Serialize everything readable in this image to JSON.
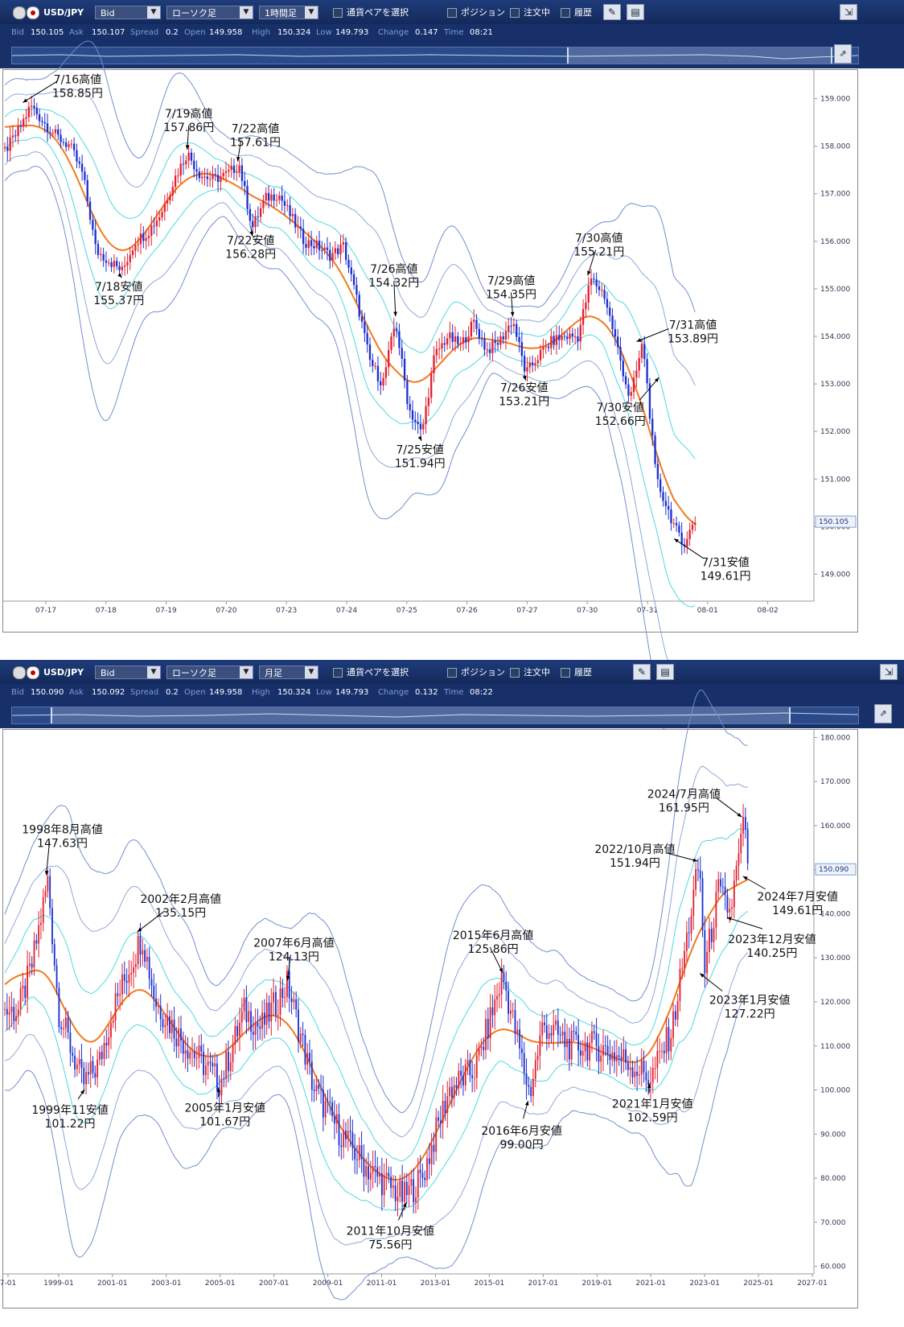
{
  "panels": [
    {
      "toolbar": {
        "pair": "USD/JPY",
        "price_type": "Bid",
        "chart_type": "ローソク足",
        "timeframe": "1時間足",
        "pair_select": "通貨ペアを選択",
        "position": "ポジション",
        "orders": "注文中",
        "history": "履歴"
      },
      "quote": {
        "bid_label": "Bid",
        "bid": "150.105",
        "ask_label": "Ask",
        "ask": "150.107",
        "spread_label": "Spread",
        "spread": "0.2",
        "open_label": "Open",
        "open": "149.958",
        "high_label": "High",
        "high": "150.324",
        "low_label": "Low",
        "low": "149.793",
        "change_label": "Change",
        "change": "0.147",
        "time_label": "Time",
        "time": "08:21"
      }
    },
    {
      "toolbar": {
        "pair": "USD/JPY",
        "price_type": "Bid",
        "chart_type": "ローソク足",
        "timeframe": "月足",
        "pair_select": "通貨ペアを選択",
        "position": "ポジション",
        "orders": "注文中",
        "history": "履歴"
      },
      "quote": {
        "bid_label": "Bid",
        "bid": "150.090",
        "ask_label": "Ask",
        "ask": "150.092",
        "spread_label": "Spread",
        "spread": "0.2",
        "open_label": "Open",
        "open": "149.958",
        "high_label": "High",
        "high": "150.324",
        "low_label": "Low",
        "low": "149.793",
        "change_label": "Change",
        "change": "0.132",
        "time_label": "Time",
        "time": "08:22"
      }
    }
  ],
  "chart_data": [
    {
      "type": "candlestick",
      "ylim": [
        148.5,
        159.5
      ],
      "y_ticks": [
        "149.000",
        "150.000",
        "151.000",
        "152.000",
        "153.000",
        "154.000",
        "155.000",
        "156.000",
        "157.000",
        "158.000",
        "159.000"
      ],
      "x_ticks": [
        "07-17",
        "07-18",
        "07-19",
        "07-20",
        "07-23",
        "07-24",
        "07-25",
        "07-26",
        "07-27",
        "07-30",
        "07-31",
        "08-01",
        "08-02"
      ],
      "current_price": "150.105",
      "price_path": [
        157.9,
        158.3,
        158.85,
        158.5,
        158.2,
        158.0,
        157.4,
        155.8,
        155.6,
        155.37,
        156.0,
        156.2,
        156.6,
        157.3,
        157.86,
        157.4,
        157.3,
        157.4,
        157.61,
        156.28,
        156.9,
        157.0,
        156.5,
        156.0,
        155.9,
        155.7,
        155.9,
        154.8,
        153.5,
        153.0,
        154.32,
        152.5,
        151.94,
        153.6,
        154.0,
        153.8,
        154.3,
        153.7,
        153.9,
        154.35,
        153.21,
        153.6,
        153.9,
        154.0,
        154.0,
        155.21,
        154.9,
        153.8,
        152.66,
        153.89,
        151.0,
        150.3,
        149.61,
        150.105
      ],
      "price_series": [
        {
          "name": "close",
          "values": [
            157.9,
            158.3,
            158.85,
            158.5,
            158.2,
            158.0,
            157.4,
            155.8,
            155.6,
            155.37,
            156.0,
            156.2,
            156.6,
            157.3,
            157.86,
            157.4,
            157.3,
            157.4,
            157.61,
            156.28,
            156.9,
            157.0,
            156.5,
            156.0,
            155.9,
            155.7,
            155.9,
            154.8,
            153.5,
            153.0,
            154.32,
            152.5,
            151.94,
            153.6,
            154.0,
            153.8,
            154.3,
            153.7,
            153.9,
            154.35,
            153.21,
            153.6,
            153.9,
            154.0,
            154.0,
            155.21,
            154.9,
            153.8,
            152.66,
            153.89,
            151.0,
            150.3,
            149.61,
            150.105
          ]
        }
      ],
      "annotations": [
        {
          "lines": [
            "7/16高値",
            "158.85円"
          ],
          "x": 2,
          "y": 158.85
        },
        {
          "lines": [
            "7/18安値",
            "155.37円"
          ],
          "x": 9,
          "y": 155.37
        },
        {
          "lines": [
            "7/19高値",
            "157.86円"
          ],
          "x": 14,
          "y": 157.86
        },
        {
          "lines": [
            "7/22高値",
            "157.61円"
          ],
          "x": 18,
          "y": 157.61
        },
        {
          "lines": [
            "7/22安値",
            "156.28円"
          ],
          "x": 19,
          "y": 156.28
        },
        {
          "lines": [
            "7/26高値",
            "154.32円"
          ],
          "x": 30,
          "y": 154.32
        },
        {
          "lines": [
            "7/25安値",
            "151.94円"
          ],
          "x": 32,
          "y": 151.94
        },
        {
          "lines": [
            "7/29高値",
            "154.35円"
          ],
          "x": 39,
          "y": 154.35
        },
        {
          "lines": [
            "7/26安値",
            "153.21円"
          ],
          "x": 40,
          "y": 153.21
        },
        {
          "lines": [
            "7/30高値",
            "155.21円"
          ],
          "x": 45,
          "y": 155.21
        },
        {
          "lines": [
            "7/30安値",
            "152.66円"
          ],
          "x": 48,
          "y": 152.66
        },
        {
          "lines": [
            "7/31高値",
            "153.89円"
          ],
          "x": 49,
          "y": 153.89
        },
        {
          "lines": [
            "7/31安値",
            "149.61円"
          ],
          "x": 52,
          "y": 149.61
        }
      ]
    },
    {
      "type": "candlestick",
      "ylim": [
        59,
        181
      ],
      "y_ticks": [
        "60.000",
        "70.000",
        "80.000",
        "90.000",
        "100.000",
        "110.000",
        "120.000",
        "130.000",
        "140.000",
        "150.000",
        "160.000",
        "170.000",
        "180.000"
      ],
      "x_ticks": [
        "7-01",
        "1999-01",
        "2001-01",
        "2003-01",
        "2005-01",
        "2007-01",
        "2009-01",
        "2011-01",
        "2013-01",
        "2015-01",
        "2017-01",
        "2019-01",
        "2021-01",
        "2023-01",
        "2025-01",
        "2027-01"
      ],
      "current_price": "150.090",
      "price_path": [
        [
          1997.5,
          118
        ],
        [
          1998.0,
          128
        ],
        [
          1998.6,
          147.63
        ],
        [
          1999.0,
          118
        ],
        [
          1999.9,
          101.22
        ],
        [
          2000.5,
          106
        ],
        [
          2001.0,
          118
        ],
        [
          2002.1,
          135.15
        ],
        [
          2002.6,
          120
        ],
        [
          2003.5,
          112
        ],
        [
          2005.0,
          101.67
        ],
        [
          2005.9,
          118
        ],
        [
          2006.5,
          114
        ],
        [
          2007.5,
          124.13
        ],
        [
          2008.5,
          100
        ],
        [
          2009.5,
          90
        ],
        [
          2010.5,
          82
        ],
        [
          2011.8,
          75.56
        ],
        [
          2012.5,
          80
        ],
        [
          2013.5,
          100
        ],
        [
          2014.5,
          105
        ],
        [
          2015.5,
          125.86
        ],
        [
          2016.5,
          99.0
        ],
        [
          2017.0,
          115
        ],
        [
          2018.0,
          110
        ],
        [
          2019.0,
          110
        ],
        [
          2020.0,
          107
        ],
        [
          2021.0,
          102.59
        ],
        [
          2021.8,
          114
        ],
        [
          2022.8,
          151.94
        ],
        [
          2023.0,
          127.22
        ],
        [
          2023.5,
          145
        ],
        [
          2023.95,
          140.25
        ],
        [
          2024.5,
          161.95
        ],
        [
          2024.6,
          149.61
        ],
        [
          2024.6,
          150.09
        ]
      ],
      "annotations": [
        {
          "lines": [
            "1998年8月高値",
            "147.63円"
          ],
          "x": 1998.6,
          "y": 147.63
        },
        {
          "lines": [
            "1999年11安値",
            "101.22円"
          ],
          "x": 1999.9,
          "y": 101.22
        },
        {
          "lines": [
            "2002年2月高値",
            "135.15円"
          ],
          "x": 2002.1,
          "y": 135.15
        },
        {
          "lines": [
            "2005年1月安値",
            "101.67円"
          ],
          "x": 2005.0,
          "y": 101.67
        },
        {
          "lines": [
            "2007年6月高値",
            "124.13円"
          ],
          "x": 2007.5,
          "y": 124.13
        },
        {
          "lines": [
            "2011年10月安値",
            "75.56円"
          ],
          "x": 2011.8,
          "y": 75.56
        },
        {
          "lines": [
            "2015年6月高値",
            "125.86円"
          ],
          "x": 2015.5,
          "y": 125.86
        },
        {
          "lines": [
            "2016年6月安値",
            "99.00円"
          ],
          "x": 2016.5,
          "y": 99.0
        },
        {
          "lines": [
            "2021年1月安値",
            "102.59円"
          ],
          "x": 2021.0,
          "y": 102.59
        },
        {
          "lines": [
            "2022/10月高値",
            "151.94円"
          ],
          "x": 2022.8,
          "y": 151.94
        },
        {
          "lines": [
            "2023年1月安値",
            "127.22円"
          ],
          "x": 2023.0,
          "y": 127.22
        },
        {
          "lines": [
            "2023年12月安値",
            "140.25円"
          ],
          "x": 2023.95,
          "y": 140.25
        },
        {
          "lines": [
            "2024/7月高値",
            "161.95円"
          ],
          "x": 2024.5,
          "y": 161.95
        },
        {
          "lines": [
            "2024年7月安値",
            "149.61円"
          ],
          "x": 2024.6,
          "y": 149.61
        }
      ]
    }
  ]
}
